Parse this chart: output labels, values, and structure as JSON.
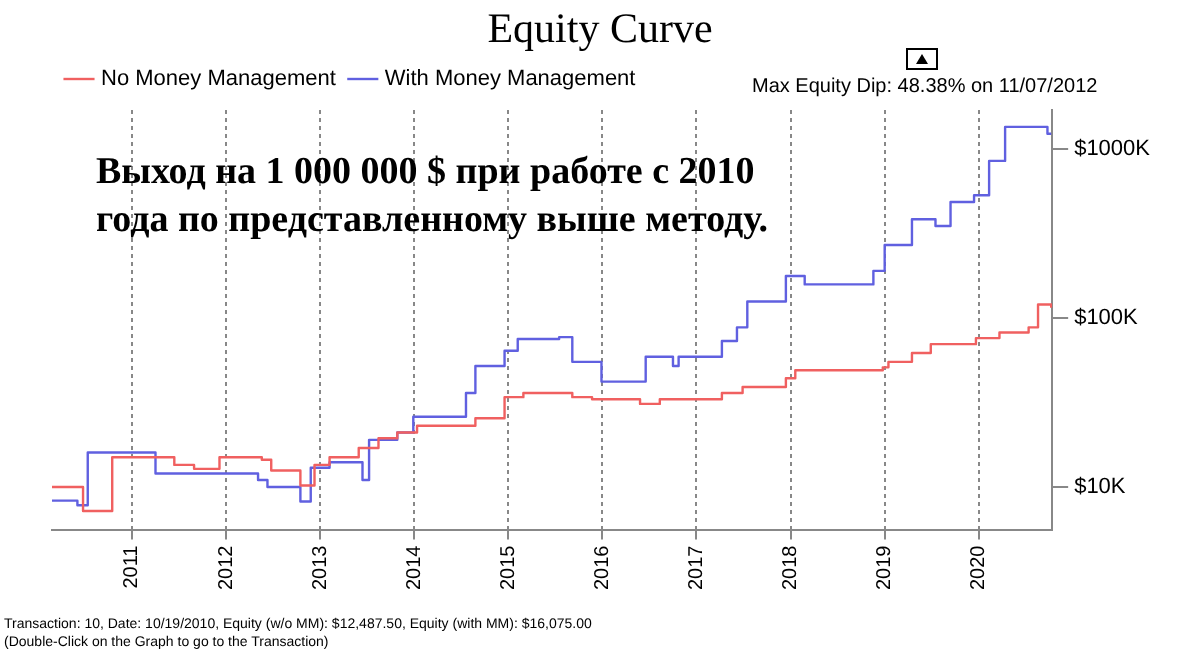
{
  "chart_data": {
    "type": "step",
    "title": "Equity Curve",
    "legend": "top",
    "grid": "x",
    "log": "y",
    "xlim": [
      2010.15,
      2020.78
    ],
    "xticks": [
      2011,
      2012,
      2013,
      2014,
      2015,
      2016,
      2017,
      2018,
      2019,
      2020
    ],
    "ylim": [
      5600,
      1700000
    ],
    "yticks": [
      {
        "value": 10000,
        "label": "$10K"
      },
      {
        "value": 100000,
        "label": "$100K"
      },
      {
        "value": 1000000,
        "label": "$1000K"
      }
    ],
    "annotations": [
      "Max Equity Dip: 48.38% on 11/07/2012",
      "Выход на 1 000 000 $ при работе с 2010 года по представленному выше методу.",
      "Transaction: 10, Date: 10/19/2010, Equity (w/o MM): $12,487.50, Equity (with MM): $16,075.00",
      "(Double-Click on the Graph to go to the Transaction)"
    ],
    "series": [
      {
        "name": "No Money Management",
        "color": "#f06060",
        "x": [
          2010.15,
          2010.48,
          2010.79,
          2011.45,
          2011.66,
          2011.93,
          2012.38,
          2012.48,
          2012.79,
          2012.94,
          2013.1,
          2013.41,
          2013.62,
          2013.82,
          2014.03,
          2014.65,
          2014.96,
          2015.16,
          2015.68,
          2015.89,
          2016.4,
          2016.61,
          2017.27,
          2017.49,
          2017.95,
          2018.05,
          2018.98,
          2019.04,
          2019.29,
          2019.49,
          2019.97,
          2020.22,
          2020.53,
          2020.63,
          2020.77
        ],
        "values": [
          10000,
          7200,
          15000,
          13500,
          12800,
          15000,
          14500,
          12500,
          10200,
          13500,
          15000,
          17000,
          19400,
          21000,
          23000,
          25500,
          34000,
          36000,
          34000,
          33000,
          31000,
          33000,
          36000,
          39000,
          44000,
          49000,
          51000,
          55000,
          62000,
          70000,
          76000,
          82000,
          88000,
          120000,
          115000
        ]
      },
      {
        "name": "With Money Management",
        "color": "#6060e0",
        "x": [
          2010.15,
          2010.42,
          2010.53,
          2011.25,
          2012.34,
          2012.44,
          2012.79,
          2012.9,
          2013.1,
          2013.45,
          2013.52,
          2013.82,
          2013.99,
          2014.55,
          2014.65,
          2014.96,
          2015.1,
          2015.54,
          2015.68,
          2015.99,
          2016.46,
          2016.75,
          2016.81,
          2017.27,
          2017.43,
          2017.54,
          2017.95,
          2018.15,
          2018.88,
          2019.0,
          2019.29,
          2019.54,
          2019.7,
          2019.95,
          2020.11,
          2020.28,
          2020.73,
          2020.77
        ],
        "values": [
          8300,
          7800,
          16000,
          12000,
          11000,
          10000,
          8200,
          13000,
          14000,
          11000,
          19000,
          21000,
          26000,
          36000,
          52000,
          64000,
          75000,
          77000,
          55000,
          42000,
          59000,
          52000,
          59000,
          73000,
          88000,
          125000,
          177000,
          158000,
          190000,
          270000,
          384000,
          350000,
          485000,
          532000,
          850000,
          1350000,
          1230000,
          1230000
        ]
      }
    ]
  }
}
